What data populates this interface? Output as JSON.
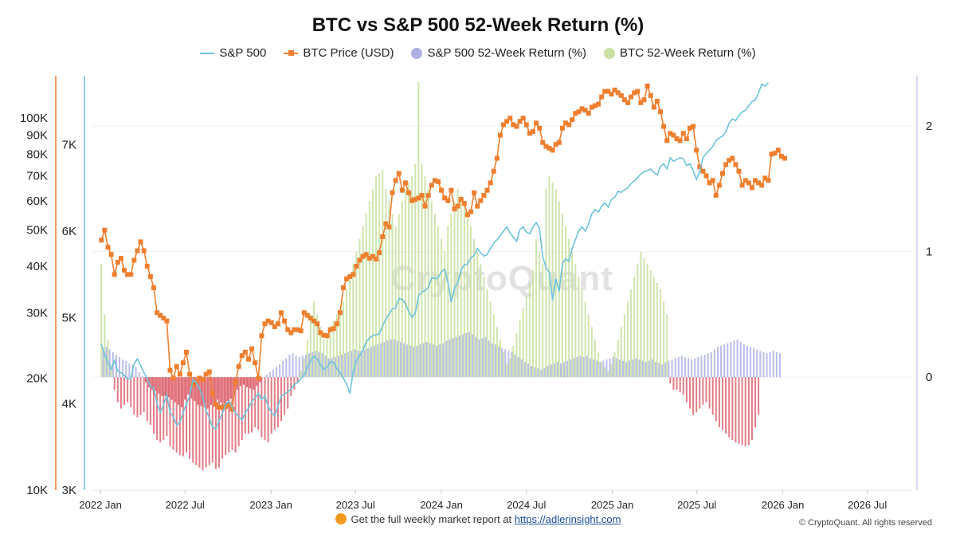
{
  "title": "BTC vs S&P 500 52-Week Return (%)",
  "legend": {
    "sp500": "S&P 500",
    "btc": "BTC Price (USD)",
    "sp_return": "S&P 500 52-Week Return (%)",
    "btc_return": "BTC 52-Week Return (%)"
  },
  "watermark": "CryptoQuant",
  "footer": {
    "text": "Get the full weekly market report at",
    "link": "https://adlerinsight.com"
  },
  "copyright": "© CryptoQuant. All rights reserved",
  "colors": {
    "sp500_line": "#6cc3dc",
    "btc_line": "#ef7f2e",
    "sp_return_pos": "#aeb0e6",
    "btc_return_pos": "#c9e2a4",
    "return_neg": "#d9505c",
    "btc_axis": "#ef7f2e",
    "sp_axis": "#6cc3dc",
    "right_axis": "#c8cce8"
  },
  "chart_data": {
    "type": "line",
    "x_ticks": [
      "2022 Jan",
      "2022 Jul",
      "2023 Jan",
      "2023 Jul",
      "2024 Jan",
      "2024 Jul",
      "2025 Jan",
      "2025 Jul",
      "2026 Jan",
      "2026 Jul"
    ],
    "btc_axis": {
      "scale": "log",
      "ticks": [
        "10K",
        "20K",
        "30K",
        "40K",
        "50K",
        "60K",
        "70K",
        "80K",
        "90K",
        "100K"
      ],
      "range": [
        10000,
        130000
      ]
    },
    "sp_axis": {
      "scale": "linear",
      "ticks": [
        "3K",
        "4K",
        "5K",
        "6K",
        "7K"
      ],
      "range": [
        3000,
        7800
      ]
    },
    "return_axis": {
      "ticks": [
        "0",
        "1",
        "2"
      ],
      "range": [
        -0.9,
        2.4
      ]
    },
    "series": [
      {
        "name": "BTC Price (USD)",
        "axis": "btc",
        "x_start": "2022-01-03",
        "x_step_days": 7,
        "values": [
          47000,
          50000,
          45000,
          43000,
          38000,
          41000,
          42000,
          39000,
          38000,
          38000,
          41500,
          44000,
          46500,
          44000,
          40000,
          37500,
          35000,
          30000,
          29500,
          29000,
          28500,
          21000,
          20000,
          21500,
          20500,
          22000,
          23500,
          20500,
          19200,
          19500,
          20000,
          19800,
          20500,
          20800,
          18200,
          17000,
          16700,
          16700,
          16800,
          17000,
          16500,
          19500,
          21500,
          23000,
          23500,
          22500,
          24000,
          22000,
          20000,
          26000,
          28000,
          28500,
          28200,
          27500,
          28000,
          30000,
          28500,
          27000,
          26500,
          27000,
          27000,
          26800,
          30000,
          29500,
          29000,
          28500,
          28000,
          26500,
          26100,
          26000,
          27000,
          27200,
          28000,
          30000,
          35000,
          37000,
          37500,
          38000,
          40000,
          41500,
          42500,
          43000,
          42000,
          42500,
          41800,
          43500,
          48000,
          52000,
          51000,
          63000,
          68000,
          71000,
          64000,
          67000,
          63000,
          60000,
          60500,
          61000,
          62000,
          58000,
          62000,
          66000,
          68000,
          67500,
          64000,
          61000,
          60000,
          64000,
          57000,
          58000,
          60500,
          59000,
          55000,
          56000,
          63000,
          58000,
          60000,
          62000,
          64000,
          67000,
          72000,
          78000,
          90000,
          96000,
          98000,
          100000,
          96000,
          95000,
          98000,
          100000,
          96000,
          91000,
          92000,
          97000,
          94000,
          86000,
          84000,
          83000,
          82000,
          85000,
          86000,
          94000,
          97000,
          96000,
          99000,
          103000,
          104000,
          106000,
          105000,
          103000,
          107000,
          108000,
          109000,
          114000,
          118000,
          118000,
          116000,
          119000,
          117000,
          115000,
          112000,
          110000,
          114000,
          117000,
          118000,
          110000,
          112000,
          122000,
          115000,
          107000,
          111000,
          104000,
          95000,
          87000,
          91000,
          90000,
          88000,
          87000,
          91000,
          88000,
          94000,
          95000,
          82000,
          74000,
          72000,
          70000,
          67000,
          68000,
          62000,
          66000,
          71000,
          75000,
          77000,
          78000,
          75000,
          72000,
          66000,
          68000,
          67000,
          65000,
          68000,
          67000,
          66000,
          69000,
          68000,
          80000,
          80500,
          82000,
          79000,
          78000
        ],
        "x_end": "2026-09-28"
      },
      {
        "name": "S&P 500",
        "axis": "sp",
        "x_start": "2022-01-03",
        "x_step_days": 7,
        "values": [
          4690,
          4570,
          4480,
          4400,
          4500,
          4380,
          4360,
          4330,
          4290,
          4290,
          4460,
          4520,
          4440,
          4360,
          4290,
          4200,
          4190,
          4000,
          3900,
          3990,
          4100,
          3900,
          3850,
          3750,
          3790,
          3900,
          4000,
          4090,
          4280,
          4250,
          4180,
          4080,
          3920,
          3840,
          3730,
          3710,
          3800,
          3890,
          3990,
          4030,
          3960,
          3900,
          3850,
          3810,
          3900,
          3950,
          4030,
          4070,
          4120,
          4050,
          4090,
          3970,
          3900,
          3860,
          3970,
          4090,
          4110,
          4140,
          4170,
          4220,
          4250,
          4290,
          4330,
          4420,
          4500,
          4550,
          4520,
          4450,
          4400,
          4420,
          4490,
          4480,
          4410,
          4360,
          4300,
          4230,
          4120,
          4370,
          4500,
          4560,
          4620,
          4720,
          4760,
          4790,
          4800,
          4810,
          4900,
          4980,
          5040,
          5100,
          5110,
          5220,
          5210,
          5160,
          5070,
          5000,
          5050,
          5250,
          5300,
          5310,
          5350,
          5460,
          5450,
          5460,
          5530,
          5560,
          5410,
          5180,
          5340,
          5400,
          5550,
          5610,
          5620,
          5690,
          5720,
          5800,
          5750,
          5710,
          5730,
          5800,
          5860,
          5900,
          5950,
          6000,
          6050,
          5980,
          5930,
          5880,
          6020,
          6050,
          5990,
          5970,
          6050,
          6100,
          6030,
          5700,
          5580,
          5520,
          5200,
          5450,
          5300,
          5620,
          5680,
          5650,
          5800,
          5900,
          6000,
          6050,
          6000,
          6080,
          6200,
          6250,
          6220,
          6290,
          6330,
          6280,
          6370,
          6390,
          6460,
          6450,
          6480,
          6500,
          6550,
          6580,
          6620,
          6660,
          6690,
          6700,
          6720,
          6680,
          6650,
          6750,
          6780,
          6720,
          6850,
          6810,
          6830,
          6850,
          6840,
          6760,
          6780,
          6700,
          6600,
          6690,
          6850,
          6900,
          6940,
          6980,
          7050,
          7080,
          7100,
          7150,
          7250,
          7300,
          7280,
          7340,
          7380,
          7400,
          7450,
          7500,
          7520,
          7600,
          7700,
          7680,
          7720
        ],
        "x_end": "2026-09-28"
      }
    ],
    "returns": {
      "sp_return": [
        0.22,
        0.24,
        0.22,
        0.2,
        0.18,
        0.16,
        0.14,
        0.13,
        0.11,
        0.1,
        0.08,
        0.04,
        0.01,
        -0.04,
        -0.08,
        -0.1,
        -0.11,
        -0.13,
        -0.15,
        -0.15,
        -0.16,
        -0.18,
        -0.2,
        -0.22,
        -0.24,
        -0.18,
        -0.14,
        -0.17,
        -0.19,
        -0.22,
        -0.23,
        -0.24,
        -0.25,
        -0.22,
        -0.2,
        -0.18,
        -0.2,
        -0.21,
        -0.19,
        -0.17,
        -0.15,
        -0.1,
        -0.07,
        -0.06,
        -0.08,
        -0.09,
        -0.1,
        -0.07,
        -0.04,
        0.0,
        0.02,
        0.04,
        0.06,
        0.08,
        0.1,
        0.13,
        0.15,
        0.18,
        0.19,
        0.17,
        0.16,
        0.17,
        0.18,
        0.19,
        0.2,
        0.21,
        0.2,
        0.19,
        0.17,
        0.15,
        0.15,
        0.16,
        0.17,
        0.18,
        0.19,
        0.2,
        0.21,
        0.22,
        0.21,
        0.21,
        0.22,
        0.23,
        0.24,
        0.25,
        0.26,
        0.27,
        0.28,
        0.29,
        0.3,
        0.3,
        0.29,
        0.28,
        0.27,
        0.26,
        0.25,
        0.24,
        0.25,
        0.26,
        0.27,
        0.28,
        0.27,
        0.26,
        0.25,
        0.26,
        0.27,
        0.29,
        0.3,
        0.31,
        0.32,
        0.33,
        0.34,
        0.35,
        0.36,
        0.34,
        0.32,
        0.3,
        0.31,
        0.32,
        0.29,
        0.27,
        0.26,
        0.24,
        0.23,
        0.22,
        0.21,
        0.2,
        0.18,
        0.16,
        0.14,
        0.12,
        0.11,
        0.09,
        0.08,
        0.07,
        0.06,
        0.07,
        0.09,
        0.1,
        0.11,
        0.12,
        0.11,
        0.12,
        0.13,
        0.14,
        0.15,
        0.16,
        0.17,
        0.16,
        0.17,
        0.15,
        0.14,
        0.13,
        0.12,
        0.13,
        0.14,
        0.15,
        0.16,
        0.15,
        0.14,
        0.13,
        0.12,
        0.13,
        0.14,
        0.15,
        0.14,
        0.13,
        0.12,
        0.13,
        0.14,
        0.12,
        0.11,
        0.1,
        0.12,
        0.13,
        0.14,
        0.15,
        0.16,
        0.17,
        0.16,
        0.15,
        0.14,
        0.15,
        0.16,
        0.17,
        0.18,
        0.19,
        0.2,
        0.22,
        0.24,
        0.25,
        0.26,
        0.27,
        0.28,
        0.29,
        0.3,
        0.28,
        0.26,
        0.25,
        0.24,
        0.23,
        0.22,
        0.21,
        0.2,
        0.19,
        0.2,
        0.21,
        0.2,
        0.19
      ],
      "btc_return": [
        0.9,
        0.5,
        0.3,
        0.1,
        -0.1,
        -0.2,
        -0.25,
        -0.22,
        -0.2,
        -0.24,
        -0.3,
        -0.32,
        -0.3,
        -0.28,
        -0.35,
        -0.38,
        -0.45,
        -0.5,
        -0.52,
        -0.5,
        -0.47,
        -0.55,
        -0.58,
        -0.6,
        -0.62,
        -0.63,
        -0.6,
        -0.65,
        -0.68,
        -0.7,
        -0.72,
        -0.74,
        -0.72,
        -0.7,
        -0.68,
        -0.73,
        -0.72,
        -0.65,
        -0.62,
        -0.6,
        -0.58,
        -0.6,
        -0.55,
        -0.5,
        -0.45,
        -0.45,
        -0.44,
        -0.4,
        -0.42,
        -0.48,
        -0.5,
        -0.52,
        -0.45,
        -0.42,
        -0.4,
        -0.35,
        -0.3,
        -0.25,
        -0.15,
        -0.1,
        -0.05,
        0.05,
        0.15,
        0.3,
        0.5,
        0.6,
        0.5,
        0.4,
        0.3,
        0.35,
        0.4,
        0.45,
        0.5,
        0.55,
        0.6,
        0.7,
        0.8,
        0.9,
        1.0,
        1.1,
        1.2,
        1.3,
        1.4,
        1.5,
        1.6,
        1.62,
        1.65,
        1.5,
        1.4,
        1.3,
        1.2,
        1.3,
        1.4,
        1.5,
        1.55,
        1.6,
        1.7,
        2.35,
        1.7,
        1.6,
        1.5,
        1.4,
        1.3,
        1.2,
        1.1,
        1.0,
        1.2,
        1.3,
        1.4,
        1.5,
        1.45,
        1.4,
        1.3,
        1.2,
        1.1,
        1.0,
        0.9,
        0.8,
        0.7,
        0.6,
        0.5,
        0.4,
        0.3,
        0.2,
        0.1,
        0.15,
        0.25,
        0.35,
        0.45,
        0.55,
        0.65,
        0.75,
        0.85,
        1.1,
        1.0,
        0.9,
        1.5,
        1.6,
        1.55,
        1.5,
        1.4,
        1.3,
        1.2,
        1.1,
        1.0,
        0.9,
        0.8,
        0.7,
        0.6,
        0.5,
        0.4,
        0.3,
        0.2,
        0.12,
        0.08,
        0.05,
        0.1,
        0.2,
        0.3,
        0.4,
        0.5,
        0.6,
        0.7,
        0.8,
        0.9,
        1.0,
        0.95,
        0.9,
        0.85,
        0.8,
        0.75,
        0.7,
        0.6,
        0.5,
        -0.05,
        -0.1,
        -0.1,
        -0.12,
        -0.14,
        -0.2,
        -0.25,
        -0.3,
        -0.28,
        -0.25,
        -0.22,
        -0.2,
        -0.25,
        -0.3,
        -0.35,
        -0.4,
        -0.42,
        -0.45,
        -0.48,
        -0.5,
        -0.52,
        -0.53,
        -0.54,
        -0.55,
        -0.54,
        -0.5,
        -0.4,
        -0.3
      ],
      "btc_return_visible_max": 2.35
    },
    "xlabel": "",
    "ylabel": ""
  }
}
